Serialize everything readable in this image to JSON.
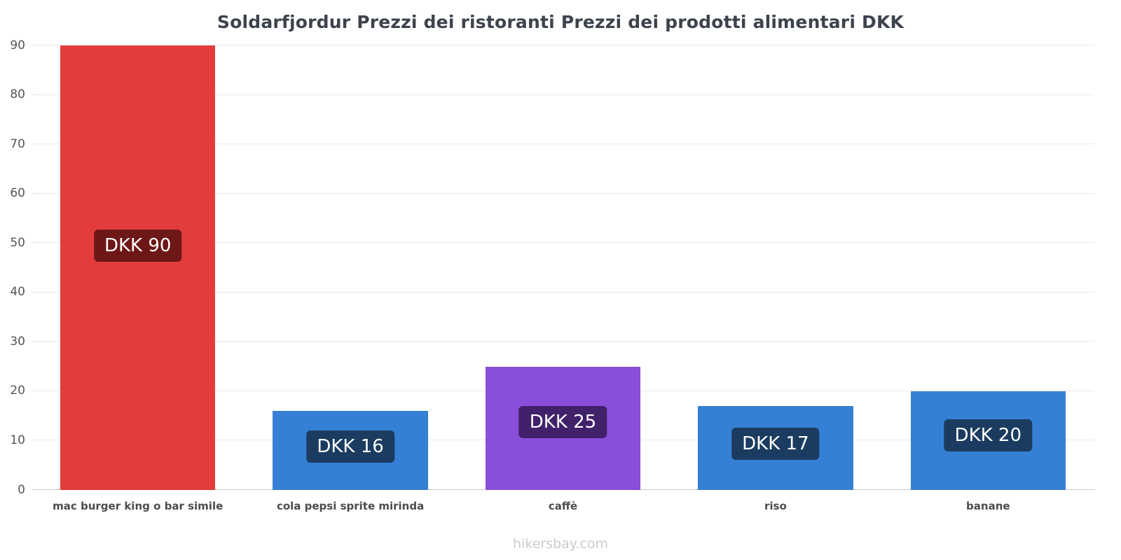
{
  "chart_data": {
    "type": "bar",
    "title": "Soldarfjordur Prezzi dei ristoranti Prezzi dei prodotti alimentari DKK",
    "categories": [
      "mac burger king o bar simile",
      "cola pepsi sprite mirinda",
      "caffè",
      "riso",
      "banane"
    ],
    "values": [
      90,
      16,
      25,
      17,
      20
    ],
    "value_labels": [
      "DKK 90",
      "DKK 16",
      "DKK 25",
      "DKK 17",
      "DKK 20"
    ],
    "bar_colors": [
      "#e23c3c",
      "#3580d4",
      "#8a4fd9",
      "#3580d4",
      "#3580d4"
    ],
    "badge_colors": [
      "#6e1717",
      "#1b3c60",
      "#40216a",
      "#1b3c60",
      "#1b3c60"
    ],
    "currency": "DKK",
    "ylim": [
      0,
      90
    ],
    "yticks": [
      0,
      10,
      20,
      30,
      40,
      50,
      60,
      70,
      80,
      90
    ],
    "grid": true,
    "legend_position": "none"
  },
  "footer": {
    "text": "hikersbay.com"
  }
}
